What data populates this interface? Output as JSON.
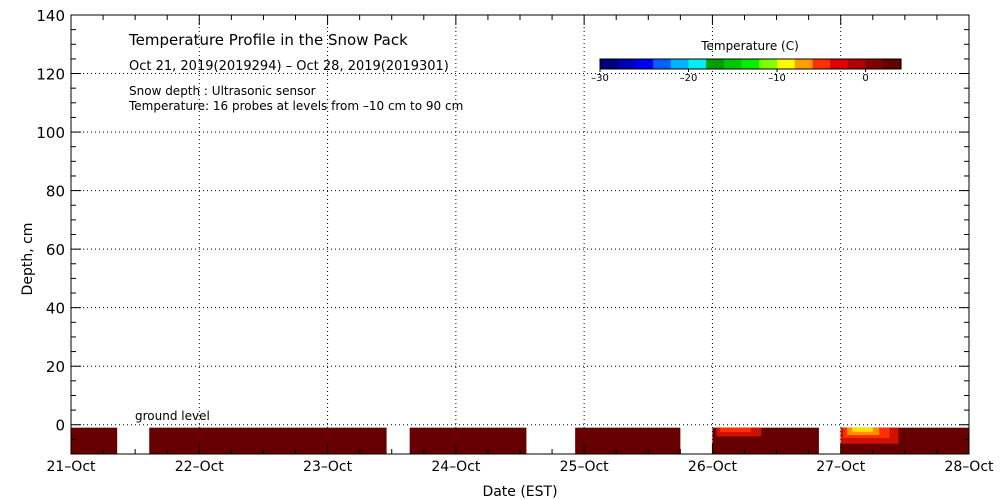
{
  "chart_data": {
    "type": "heatmap",
    "title": "Temperature Profile in the Snow Pack",
    "subtitle": "Oct 21, 2019(2019294) – Oct 28, 2019(2019301)",
    "notes": [
      "Snow depth : Ultrasonic sensor",
      "Temperature: 16 probes at levels from –10 cm to 90 cm"
    ],
    "xlabel": "Date (EST)",
    "ylabel": "Depth, cm",
    "x_ticks": [
      "21–Oct",
      "22–Oct",
      "23–Oct",
      "24–Oct",
      "25–Oct",
      "26–Oct",
      "27–Oct",
      "28–Oct"
    ],
    "xlim_days": [
      0,
      7
    ],
    "ylim": [
      -10,
      140
    ],
    "y_ticks": [
      0,
      20,
      40,
      60,
      80,
      100,
      120,
      140
    ],
    "grid": true,
    "ground_label": "ground level",
    "ground_level": 0,
    "colorbar": {
      "title": "Temperature (C)",
      "range": [
        -30,
        4
      ],
      "tick_values": [
        -30,
        -20,
        -10,
        0
      ],
      "tick_labels": [
        "–30",
        "–20",
        "–10",
        "0"
      ],
      "colors": [
        "#00007a",
        "#0000b8",
        "#0000f0",
        "#0060ff",
        "#00b4ff",
        "#00f0f0",
        "#00a000",
        "#00c800",
        "#00f000",
        "#80ff00",
        "#ffff00",
        "#ffa000",
        "#ff3000",
        "#e00000",
        "#b00000",
        "#800000",
        "#600000"
      ]
    },
    "data_segments": [
      {
        "start_day": 0.0,
        "end_day": 0.36,
        "top_cm": -1,
        "bottom_cm": -10,
        "color": "#660000"
      },
      {
        "start_day": 0.61,
        "end_day": 2.46,
        "top_cm": -1,
        "bottom_cm": -10,
        "color": "#660000"
      },
      {
        "start_day": 2.64,
        "end_day": 3.55,
        "top_cm": -1,
        "bottom_cm": -10,
        "color": "#660000"
      },
      {
        "start_day": 3.93,
        "end_day": 4.75,
        "top_cm": -1,
        "bottom_cm": -10,
        "color": "#660000"
      },
      {
        "start_day": 5.0,
        "end_day": 5.83,
        "top_cm": -1,
        "bottom_cm": -10,
        "color": "#660000"
      },
      {
        "start_day": 6.0,
        "end_day": 7.0,
        "top_cm": -1,
        "bottom_cm": -10,
        "color": "#660000"
      }
    ],
    "warm_patches": [
      {
        "start_day": 5.03,
        "end_day": 5.38,
        "top_cm": -1,
        "bottom_cm": -4,
        "color": "#d01000"
      },
      {
        "start_day": 5.06,
        "end_day": 5.3,
        "top_cm": -1,
        "bottom_cm": -2.5,
        "color": "#ff3000"
      },
      {
        "start_day": 6.0,
        "end_day": 6.45,
        "top_cm": -1,
        "bottom_cm": -6.5,
        "color": "#d01000"
      },
      {
        "start_day": 6.02,
        "end_day": 6.38,
        "top_cm": -1,
        "bottom_cm": -4.5,
        "color": "#ff3000"
      },
      {
        "start_day": 6.05,
        "end_day": 6.3,
        "top_cm": -1,
        "bottom_cm": -3.5,
        "color": "#ff9000"
      },
      {
        "start_day": 6.09,
        "end_day": 6.25,
        "top_cm": -1,
        "bottom_cm": -2.5,
        "color": "#ffe000"
      }
    ]
  }
}
